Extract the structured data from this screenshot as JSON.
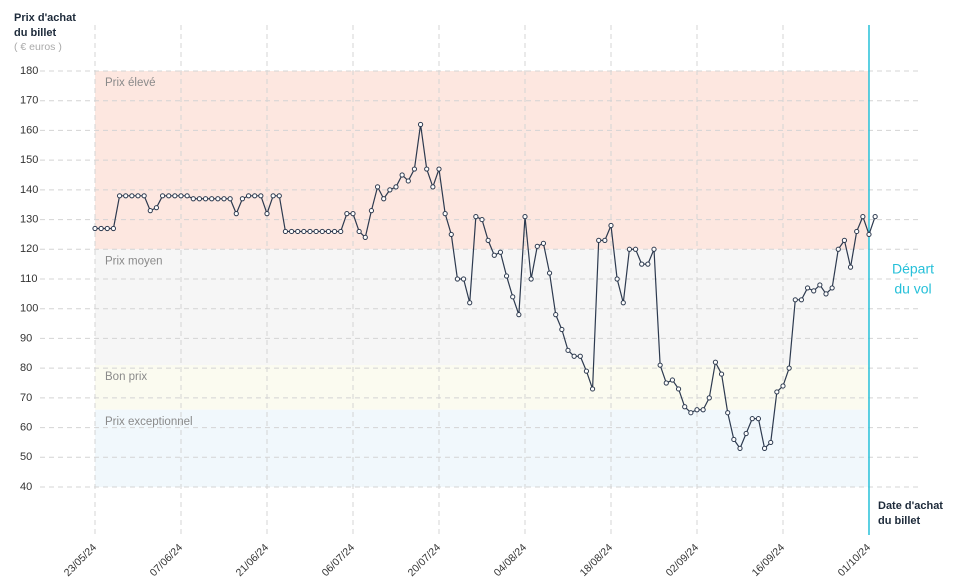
{
  "chart_data": {
    "type": "line",
    "ylabel_lines": [
      "Prix d'achat",
      "du billet"
    ],
    "yunit": "( € euros )",
    "xlabel_lines": [
      "Date d'achat",
      "du billet"
    ],
    "departure_lines": [
      "Départ",
      "du vol"
    ],
    "categories": [
      "23/05/24",
      null,
      null,
      null,
      null,
      null,
      null,
      null,
      null,
      null,
      null,
      null,
      null,
      null,
      "07/06/24",
      null,
      null,
      null,
      null,
      null,
      null,
      null,
      null,
      null,
      null,
      null,
      null,
      null,
      "21/06/24",
      null,
      null,
      null,
      null,
      null,
      null,
      null,
      null,
      null,
      null,
      null,
      null,
      null,
      "06/07/24",
      null,
      null,
      null,
      null,
      null,
      null,
      null,
      null,
      null,
      null,
      null,
      null,
      null,
      "20/07/24",
      null,
      null,
      null,
      null,
      null,
      null,
      null,
      null,
      null,
      null,
      null,
      null,
      null,
      "04/08/24",
      null,
      null,
      null,
      null,
      null,
      null,
      null,
      null,
      null,
      null,
      null,
      null,
      null,
      "18/08/24",
      null,
      null,
      null,
      null,
      null,
      null,
      null,
      null,
      null,
      null,
      null,
      null,
      null,
      "02/09/24",
      null,
      null,
      null,
      null,
      null,
      null,
      null,
      null,
      null,
      null,
      null,
      null,
      null,
      "16/09/24",
      null,
      null,
      null,
      null,
      null,
      null,
      null,
      null,
      null,
      null,
      null,
      null,
      null,
      "01/10/24",
      null
    ],
    "series": [
      {
        "color": "#2d3a4f",
        "values": [
          127,
          127,
          127,
          127,
          138,
          138,
          138,
          138,
          138,
          133,
          134,
          138,
          138,
          138,
          138,
          138,
          137,
          137,
          137,
          137,
          137,
          137,
          137,
          132,
          137,
          138,
          138,
          138,
          132,
          138,
          138,
          126,
          126,
          126,
          126,
          126,
          126,
          126,
          126,
          126,
          126,
          132,
          132,
          126,
          124,
          133,
          141,
          137,
          140,
          141,
          145,
          143,
          147,
          162,
          147,
          141,
          147,
          132,
          125,
          110,
          110,
          102,
          131,
          130,
          123,
          118,
          119,
          111,
          104,
          98,
          131,
          110,
          121,
          122,
          112,
          98,
          93,
          86,
          84,
          84,
          79,
          73,
          123,
          123,
          128,
          110,
          102,
          120,
          120,
          115,
          115,
          120,
          81,
          75,
          76,
          73,
          67,
          65,
          66,
          66,
          70,
          82,
          78,
          65,
          56,
          53,
          58,
          63,
          63,
          53,
          55,
          72,
          74,
          80,
          103,
          103,
          107,
          106,
          108,
          105,
          107,
          120,
          123,
          114,
          126,
          131,
          125,
          131
        ]
      }
    ],
    "bands": [
      {
        "name": "Prix élevé",
        "from": 120,
        "to": 180,
        "color": "#fde7e0"
      },
      {
        "name": "Prix moyen",
        "from": 81,
        "to": 120,
        "color": "#f6f6f6"
      },
      {
        "name": "Bon prix",
        "from": 66,
        "to": 81,
        "color": "#fbfbf0"
      },
      {
        "name": "Prix exceptionnel",
        "from": 40,
        "to": 66,
        "color": "#f1f8fc"
      }
    ],
    "ylim": [
      40,
      180
    ],
    "yticks": [
      40,
      50,
      60,
      70,
      80,
      90,
      100,
      110,
      120,
      130,
      140,
      150,
      160,
      170,
      180
    ],
    "grid": true
  }
}
